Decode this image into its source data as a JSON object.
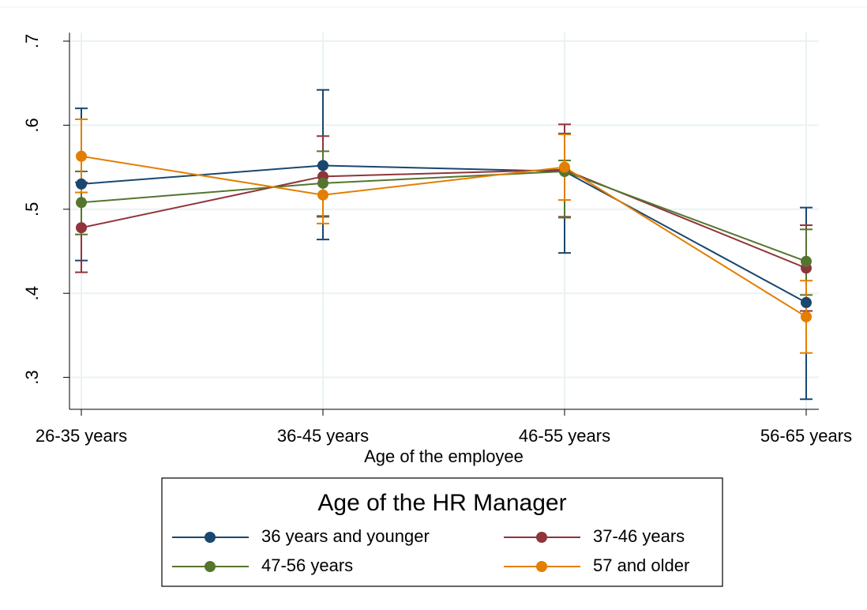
{
  "chart_data": {
    "type": "line",
    "x_label": "Age of the employee",
    "categories": [
      "26-35 years",
      "36-45 years",
      "46-55 years",
      "56-65 years"
    ],
    "ylim": [
      0.262,
      0.71
    ],
    "yticks": [
      {
        "value": 0.3,
        "label": ".3"
      },
      {
        "value": 0.4,
        "label": ".4"
      },
      {
        "value": 0.5,
        "label": ".5"
      },
      {
        "value": 0.6,
        "label": ".6"
      },
      {
        "value": 0.7,
        "label": ".7"
      }
    ],
    "grid": true,
    "legend_title": "Age of the HR Manager",
    "legend_position": "bottom",
    "series": [
      {
        "name": "36 years and younger",
        "color": "#1a476f",
        "values": [
          0.53,
          0.552,
          0.545,
          0.389
        ],
        "ci_low": [
          0.439,
          0.464,
          0.448,
          0.274
        ],
        "ci_high": [
          0.62,
          0.642,
          0.59,
          0.502
        ]
      },
      {
        "name": "37-46 years",
        "color": "#90353b",
        "values": [
          0.478,
          0.539,
          0.547,
          0.43
        ],
        "ci_low": [
          0.425,
          0.491,
          0.491,
          0.379
        ],
        "ci_high": [
          0.532,
          0.587,
          0.601,
          0.481
        ]
      },
      {
        "name": "47-56 years",
        "color": "#55752f",
        "values": [
          0.508,
          0.531,
          0.545,
          0.438
        ],
        "ci_low": [
          0.47,
          0.492,
          0.49,
          0.398
        ],
        "ci_high": [
          0.545,
          0.569,
          0.558,
          0.476
        ]
      },
      {
        "name": "57 and older",
        "color": "#e37e00",
        "values": [
          0.563,
          0.517,
          0.55,
          0.372
        ],
        "ci_low": [
          0.52,
          0.483,
          0.511,
          0.329
        ],
        "ci_high": [
          0.607,
          0.552,
          0.589,
          0.415
        ]
      }
    ]
  }
}
